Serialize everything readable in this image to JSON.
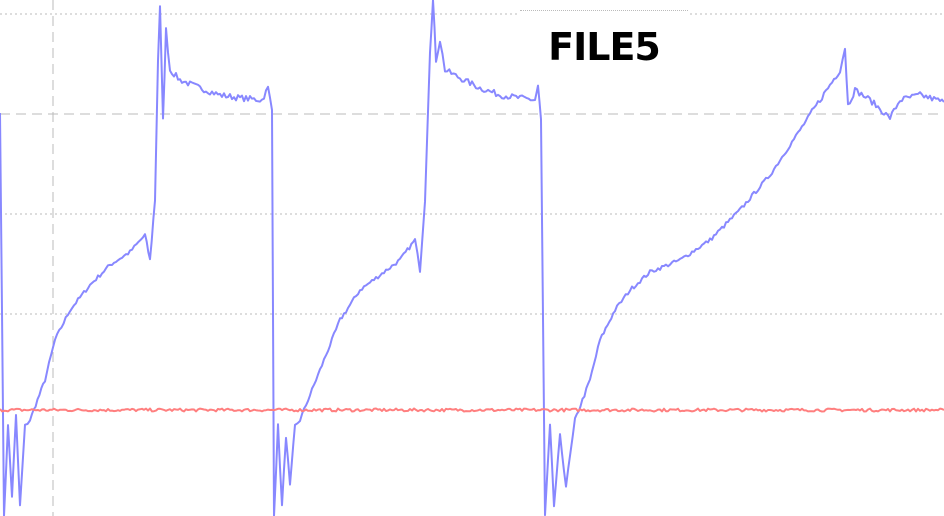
{
  "chart_data": {
    "type": "line",
    "title": "FILE5",
    "xlabel": "",
    "ylabel": "",
    "xlim": [
      0,
      9.44
    ],
    "ylim": [
      0,
      5.16
    ],
    "grid": true,
    "colors": {
      "blue": "#8888ff",
      "red": "#ff7f7f",
      "grid": "#bbbbbb"
    },
    "series": [
      {
        "color": "#8888ff",
        "points": [
          [
            0,
            4.06
          ],
          [
            0.04,
            0
          ],
          [
            0.08,
            0.9
          ],
          [
            0.12,
            0.2
          ],
          [
            0.16,
            1.0
          ],
          [
            0.2,
            0.1
          ],
          [
            0.25,
            0.9
          ],
          [
            0.3,
            0.96
          ],
          [
            0.45,
            1.36
          ],
          [
            0.55,
            1.76
          ],
          [
            0.7,
            2.06
          ],
          [
            0.9,
            2.31
          ],
          [
            1.1,
            2.51
          ],
          [
            1.3,
            2.64
          ],
          [
            1.45,
            2.81
          ],
          [
            1.5,
            2.56
          ],
          [
            1.55,
            3.16
          ],
          [
            1.58,
            4.56
          ],
          [
            1.6,
            5.08
          ],
          [
            1.63,
            3.96
          ],
          [
            1.66,
            4.86
          ],
          [
            1.7,
            4.46
          ],
          [
            1.8,
            4.36
          ],
          [
            2.0,
            4.28
          ],
          [
            2.2,
            4.21
          ],
          [
            2.4,
            4.18
          ],
          [
            2.62,
            4.16
          ],
          [
            2.68,
            4.28
          ],
          [
            2.72,
            4.06
          ],
          [
            2.74,
            0
          ],
          [
            2.78,
            0.9
          ],
          [
            2.82,
            0.1
          ],
          [
            2.86,
            0.8
          ],
          [
            2.9,
            0.3
          ],
          [
            2.95,
            0.9
          ],
          [
            3.0,
            0.96
          ],
          [
            3.2,
            1.46
          ],
          [
            3.4,
            1.96
          ],
          [
            3.6,
            2.26
          ],
          [
            3.8,
            2.41
          ],
          [
            4.0,
            2.56
          ],
          [
            4.15,
            2.76
          ],
          [
            4.2,
            2.46
          ],
          [
            4.25,
            3.16
          ],
          [
            4.3,
            4.66
          ],
          [
            4.33,
            5.16
          ],
          [
            4.36,
            4.56
          ],
          [
            4.4,
            4.76
          ],
          [
            4.45,
            4.46
          ],
          [
            4.6,
            4.38
          ],
          [
            4.8,
            4.28
          ],
          [
            5.0,
            4.21
          ],
          [
            5.2,
            4.18
          ],
          [
            5.35,
            4.16
          ],
          [
            5.38,
            4.3
          ],
          [
            5.41,
            3.96
          ],
          [
            5.45,
            0
          ],
          [
            5.5,
            0.9
          ],
          [
            5.54,
            0.1
          ],
          [
            5.6,
            0.8
          ],
          [
            5.66,
            0.3
          ],
          [
            5.75,
            0.96
          ],
          [
            5.9,
            1.36
          ],
          [
            6.0,
            1.76
          ],
          [
            6.15,
            2.06
          ],
          [
            6.3,
            2.26
          ],
          [
            6.5,
            2.44
          ],
          [
            6.8,
            2.56
          ],
          [
            7.1,
            2.76
          ],
          [
            7.4,
            3.06
          ],
          [
            7.7,
            3.41
          ],
          [
            8.0,
            3.86
          ],
          [
            8.3,
            4.31
          ],
          [
            8.4,
            4.46
          ],
          [
            8.45,
            4.68
          ],
          [
            8.48,
            4.11
          ],
          [
            8.55,
            4.26
          ],
          [
            8.7,
            4.16
          ],
          [
            8.9,
            3.98
          ],
          [
            9.0,
            4.16
          ],
          [
            9.2,
            4.21
          ],
          [
            9.44,
            4.14
          ]
        ]
      },
      {
        "color": "#ff7f7f",
        "points": [
          [
            0,
            1.06
          ],
          [
            9.44,
            1.06
          ]
        ]
      }
    ]
  }
}
